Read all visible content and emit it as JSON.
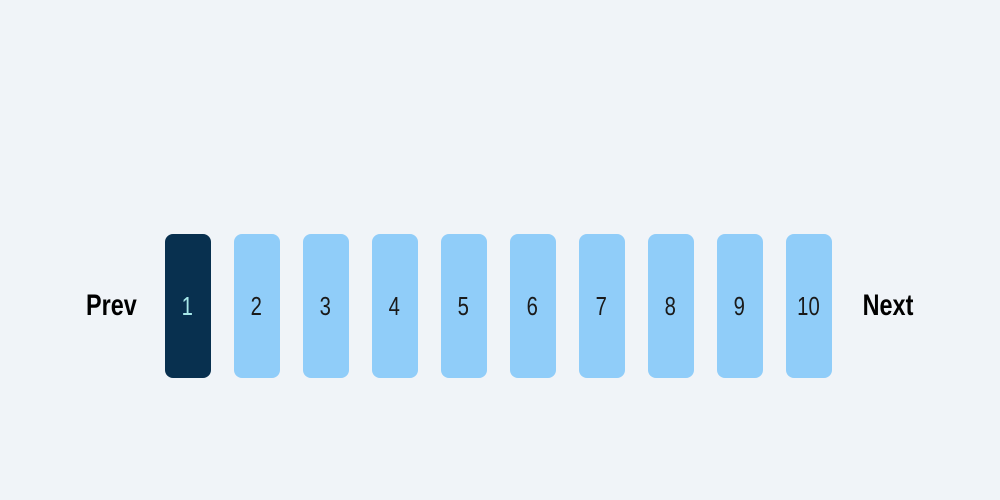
{
  "pagination": {
    "prev_label": "Prev",
    "next_label": "Next",
    "current_page": 1,
    "pages": [
      "1",
      "2",
      "3",
      "4",
      "5",
      "6",
      "7",
      "8",
      "9",
      "10"
    ],
    "colors": {
      "background": "#f0f4f8",
      "active_bg": "#08304f",
      "active_text": "#a7e8e9",
      "inactive_bg": "#90cdf9",
      "inactive_text": "#1a1a1a",
      "nav_text": "#000000"
    }
  }
}
